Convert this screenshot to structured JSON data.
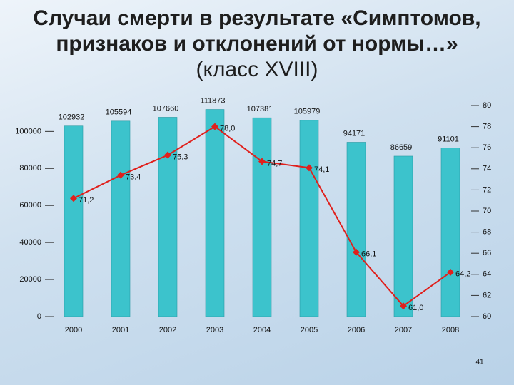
{
  "chart_data": {
    "type": "combo",
    "title": "Случаи смерти в результате «Симптомов, признаков и отклонений от нормы…»",
    "subtitle": "(класс XVIII)",
    "categories": [
      "2000",
      "2001",
      "2002",
      "2003",
      "2004",
      "2005",
      "2006",
      "2007",
      "2008"
    ],
    "series": [
      {
        "type": "bar",
        "color": "#3cc3cc",
        "values": [
          102932,
          105594,
          107660,
          111873,
          107381,
          105979,
          94171,
          86659,
          91101
        ]
      },
      {
        "type": "line",
        "axis": "y2",
        "color": "#e0201c",
        "values": [
          71.2,
          73.4,
          75.3,
          78.0,
          74.7,
          74.1,
          66.1,
          61.0,
          64.2
        ],
        "value_labels": [
          "71,2",
          "73,4",
          "75,3",
          "78,0",
          "74,7",
          "74,1",
          "66,1",
          "61,0",
          "64,2"
        ]
      }
    ],
    "ylim": [
      0,
      114000
    ],
    "yticks": [
      0,
      20000,
      40000,
      60000,
      80000,
      100000
    ],
    "y2lim": [
      60,
      80
    ],
    "y2ticks": [
      60,
      62,
      64,
      66,
      68,
      70,
      72,
      74,
      76,
      78,
      80
    ]
  },
  "page_number": "41"
}
